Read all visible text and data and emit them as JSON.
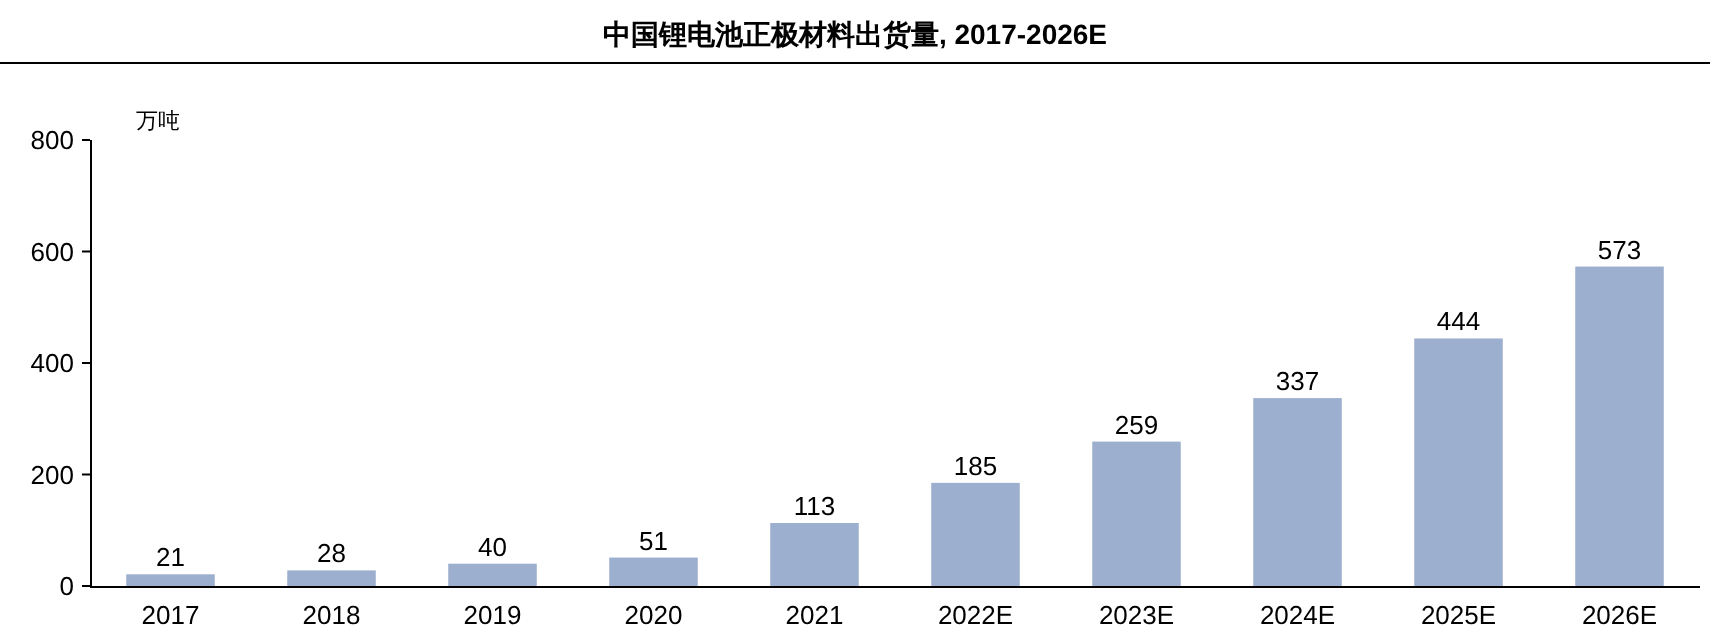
{
  "chart_data": {
    "type": "bar",
    "title": "中国锂电池正极材料出货量, 2017-2026E",
    "ylabel": "万吨",
    "categories": [
      "2017",
      "2018",
      "2019",
      "2020",
      "2021",
      "2022E",
      "2023E",
      "2024E",
      "2025E",
      "2026E"
    ],
    "values": [
      21,
      28,
      40,
      51,
      113,
      185,
      259,
      337,
      444,
      573
    ],
    "color": "#9dafce",
    "ylim": [
      0,
      800
    ],
    "yticks": [
      0,
      200,
      400,
      600,
      800
    ],
    "data_labels": true
  }
}
